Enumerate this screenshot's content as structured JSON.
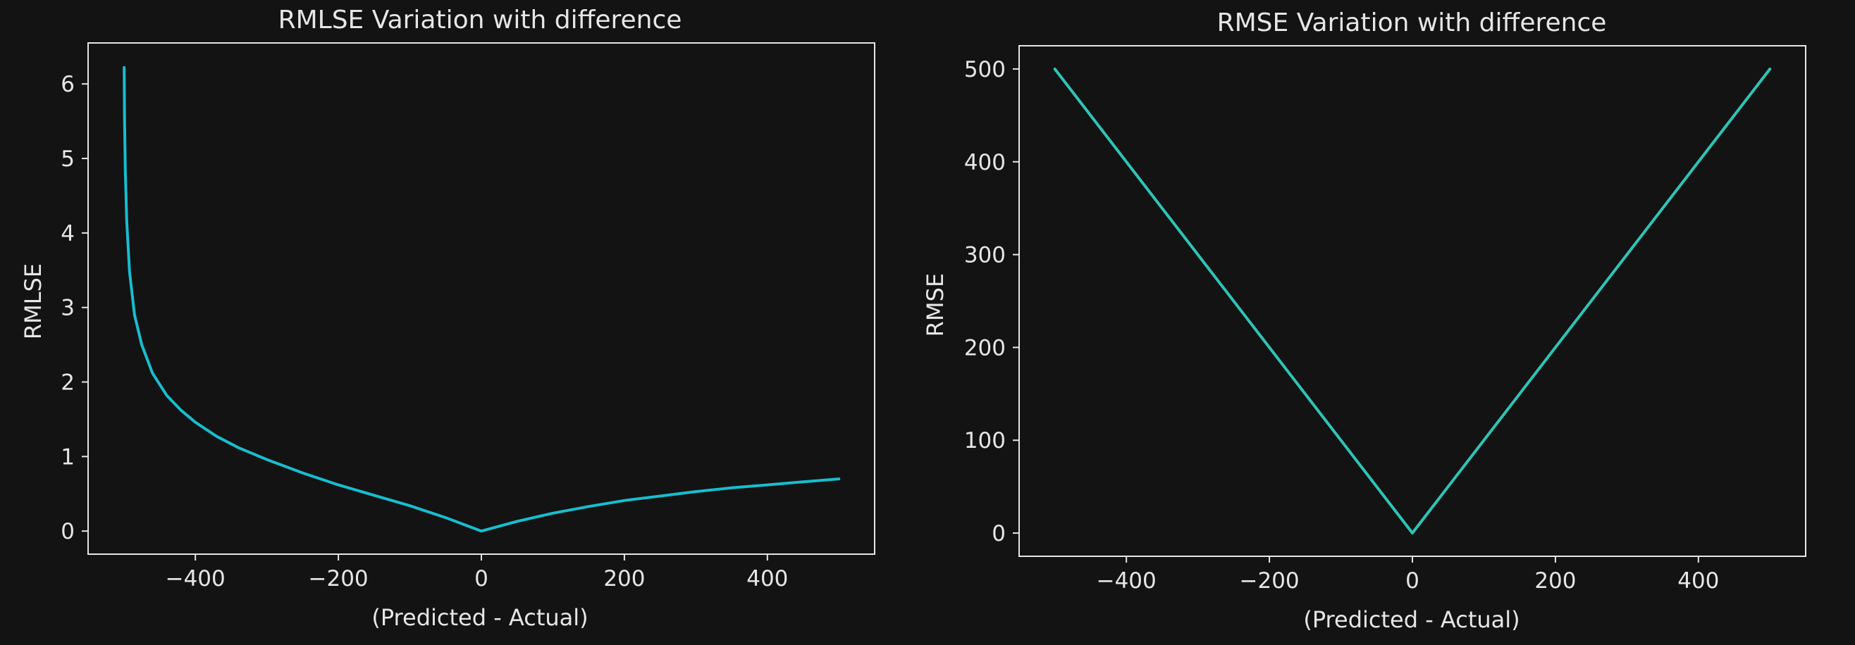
{
  "colors": {
    "background": "#131313",
    "axes": "#e6e6e6",
    "text": "#e6e6e6",
    "rmlse_line": "#17becf",
    "rmse_line": "#2ec4b6"
  },
  "chart_data": [
    {
      "type": "line",
      "title": "RMLSE Variation with difference",
      "xlabel": "(Predicted - Actual)",
      "ylabel": "RMLSE",
      "xlim": [
        -550,
        550
      ],
      "ylim": [
        -0.31,
        6.55
      ],
      "xticks": [
        -400,
        -200,
        0,
        200,
        400
      ],
      "xtick_labels": [
        "−400",
        "−200",
        "0",
        "200",
        "400"
      ],
      "yticks": [
        0,
        1,
        2,
        3,
        4,
        5,
        6
      ],
      "ytick_labels": [
        "0",
        "1",
        "2",
        "3",
        "4",
        "5",
        "6"
      ],
      "grid": false,
      "series": [
        {
          "x": [
            -499.5,
            -499,
            -498,
            -496,
            -492,
            -485,
            -475,
            -460,
            -440,
            -420,
            -400,
            -370,
            -340,
            -300,
            -250,
            -200,
            -150,
            -100,
            -50,
            0,
            50,
            100,
            150,
            200,
            250,
            300,
            350,
            400,
            450,
            500
          ],
          "y": [
            6.22,
            5.53,
            4.84,
            4.16,
            3.48,
            2.9,
            2.5,
            2.12,
            1.82,
            1.62,
            1.46,
            1.27,
            1.12,
            0.96,
            0.78,
            0.62,
            0.48,
            0.34,
            0.18,
            0.0,
            0.13,
            0.24,
            0.33,
            0.41,
            0.47,
            0.53,
            0.58,
            0.62,
            0.66,
            0.7
          ]
        }
      ]
    },
    {
      "type": "line",
      "title": "RMSE Variation with difference",
      "xlabel": "(Predicted - Actual)",
      "ylabel": "RMSE",
      "xlim": [
        -550,
        550
      ],
      "ylim": [
        -25,
        525
      ],
      "xticks": [
        -400,
        -200,
        0,
        200,
        400
      ],
      "xtick_labels": [
        "−400",
        "−200",
        "0",
        "200",
        "400"
      ],
      "yticks": [
        0,
        100,
        200,
        300,
        400,
        500
      ],
      "ytick_labels": [
        "0",
        "100",
        "200",
        "300",
        "400",
        "500"
      ],
      "grid": false,
      "series": [
        {
          "x": [
            -500,
            0,
            500
          ],
          "y": [
            500,
            0,
            500
          ]
        }
      ]
    }
  ]
}
